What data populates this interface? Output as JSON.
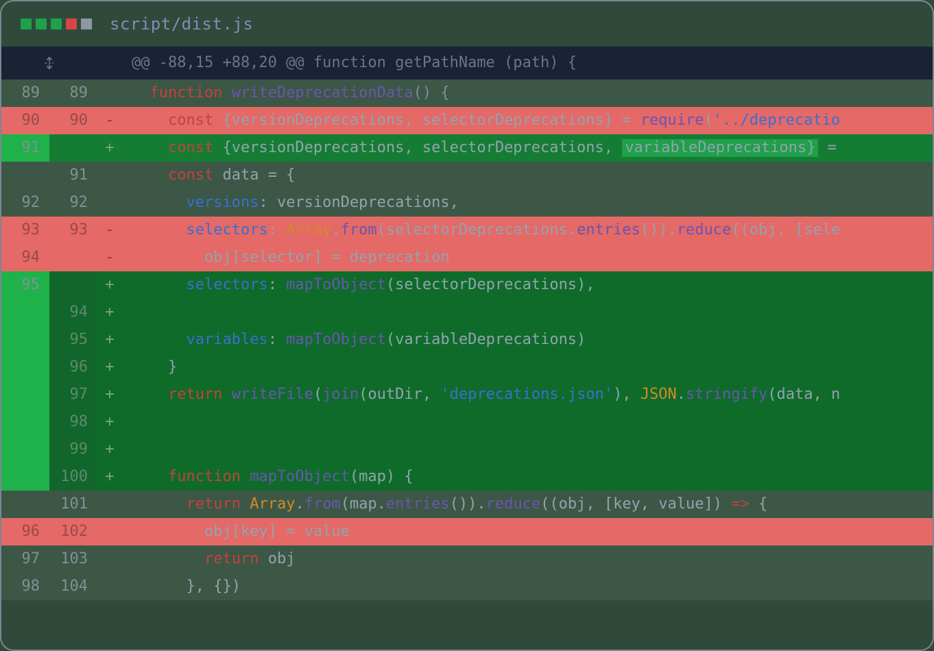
{
  "header": {
    "file_path": "script/dist.js",
    "dots": [
      "#1fa04a",
      "#1fa04a",
      "#1fa04a",
      "#d64543",
      "#8d98a3"
    ]
  },
  "hunk": {
    "text": "@@ -88,15 +88,20 @@ function getPathName (path) {"
  },
  "rows": [
    {
      "type": "ctx",
      "old": "89",
      "new": "89",
      "tokens": [
        {
          "t": "  ",
          "c": ""
        },
        {
          "t": "function",
          "c": "k-red"
        },
        {
          "t": " ",
          "c": ""
        },
        {
          "t": "writeDeprecationData",
          "c": "k-purple"
        },
        {
          "t": "() {",
          "c": "txt-dim"
        }
      ]
    },
    {
      "type": "del",
      "old": "90",
      "new": "90",
      "sign": "-",
      "tokens": [
        {
          "t": "    ",
          "c": ""
        },
        {
          "t": "const",
          "c": "k-red"
        },
        {
          "t": " {versionDeprecations, selectorDeprecations} = ",
          "c": "txt-d2"
        },
        {
          "t": "require",
          "c": "k-purple"
        },
        {
          "t": "(",
          "c": "txt-d2"
        },
        {
          "t": "'../deprecatio",
          "c": "k-blue"
        }
      ]
    },
    {
      "type": "add",
      "bright": true,
      "old": "91",
      "new": "",
      "sign": "+",
      "tokens": [
        {
          "t": "    ",
          "c": ""
        },
        {
          "t": "const",
          "c": "k-red"
        },
        {
          "t": " {versionDeprecations, selectorDeprecations, ",
          "c": "txt-d2"
        },
        {
          "t": "variableDeprecations}",
          "c": "txt-d2",
          "hl": true
        },
        {
          "t": " =",
          "c": "txt-d2"
        }
      ]
    },
    {
      "type": "ctx",
      "old": "",
      "new": "91",
      "tokens": [
        {
          "t": "    ",
          "c": ""
        },
        {
          "t": "const",
          "c": "k-red"
        },
        {
          "t": " data = {",
          "c": "txt-d2"
        }
      ]
    },
    {
      "type": "ctx",
      "old": "92",
      "new": "92",
      "tokens": [
        {
          "t": "      ",
          "c": ""
        },
        {
          "t": "versions",
          "c": "k-blue"
        },
        {
          "t": ": versionDeprecations,",
          "c": "txt-d2"
        }
      ]
    },
    {
      "type": "del",
      "old": "93",
      "new": "93",
      "sign": "-",
      "tokens": [
        {
          "t": "      ",
          "c": ""
        },
        {
          "t": "selectors",
          "c": "k-blue"
        },
        {
          "t": ": ",
          "c": "txt-d2"
        },
        {
          "t": "Array",
          "c": "k-orange"
        },
        {
          "t": ".",
          "c": "txt-d2"
        },
        {
          "t": "from",
          "c": "k-purple"
        },
        {
          "t": "(selectorDeprecations.",
          "c": "txt-d2"
        },
        {
          "t": "entries",
          "c": "k-purple"
        },
        {
          "t": "()).",
          "c": "txt-d2"
        },
        {
          "t": "reduce",
          "c": "k-purple"
        },
        {
          "t": "((obj, [sele",
          "c": "txt-d2"
        }
      ]
    },
    {
      "type": "del",
      "old": "94",
      "new": "",
      "sign": "-",
      "tokens": [
        {
          "t": "        obj[selector] = deprecation",
          "c": "txt-d2"
        }
      ]
    },
    {
      "type": "add",
      "old": "95",
      "new": "",
      "sign": "+",
      "tokens": [
        {
          "t": "      ",
          "c": ""
        },
        {
          "t": "selectors",
          "c": "k-blue"
        },
        {
          "t": ": ",
          "c": "txt-d2"
        },
        {
          "t": "mapToObject",
          "c": "k-purple"
        },
        {
          "t": "(selectorDeprecations),",
          "c": "txt-d2"
        }
      ]
    },
    {
      "type": "add",
      "old": "",
      "new": "94",
      "sign": "+",
      "tokens": [
        {
          "t": "",
          "c": ""
        }
      ]
    },
    {
      "type": "add",
      "old": "",
      "new": "95",
      "sign": "+",
      "tokens": [
        {
          "t": "      ",
          "c": ""
        },
        {
          "t": "variables",
          "c": "k-blue"
        },
        {
          "t": ": ",
          "c": "txt-d2"
        },
        {
          "t": "mapToObject",
          "c": "k-purple"
        },
        {
          "t": "(variableDeprecations)",
          "c": "txt-d2"
        }
      ]
    },
    {
      "type": "add",
      "old": "",
      "new": "96",
      "sign": "+",
      "tokens": [
        {
          "t": "    }",
          "c": "txt-d2"
        }
      ]
    },
    {
      "type": "add",
      "old": "",
      "new": "97",
      "sign": "+",
      "tokens": [
        {
          "t": "    ",
          "c": ""
        },
        {
          "t": "return",
          "c": "k-red"
        },
        {
          "t": " ",
          "c": ""
        },
        {
          "t": "writeFile",
          "c": "k-purple"
        },
        {
          "t": "(",
          "c": "txt-d2"
        },
        {
          "t": "join",
          "c": "k-purple"
        },
        {
          "t": "(outDir, ",
          "c": "txt-d2"
        },
        {
          "t": "'deprecations.json'",
          "c": "k-blue"
        },
        {
          "t": "), ",
          "c": "txt-d2"
        },
        {
          "t": "JSON",
          "c": "k-orange"
        },
        {
          "t": ".",
          "c": "txt-d2"
        },
        {
          "t": "stringify",
          "c": "k-purple"
        },
        {
          "t": "(data, n",
          "c": "txt-d2"
        }
      ]
    },
    {
      "type": "add",
      "old": "",
      "new": "98",
      "sign": "+",
      "tokens": [
        {
          "t": "",
          "c": ""
        }
      ]
    },
    {
      "type": "add",
      "old": "",
      "new": "99",
      "sign": "+",
      "tokens": [
        {
          "t": "",
          "c": ""
        }
      ]
    },
    {
      "type": "add",
      "old": "",
      "new": "100",
      "sign": "+",
      "tokens": [
        {
          "t": "    ",
          "c": ""
        },
        {
          "t": "function",
          "c": "k-red"
        },
        {
          "t": " ",
          "c": ""
        },
        {
          "t": "mapToObject",
          "c": "k-purple"
        },
        {
          "t": "(map) {",
          "c": "txt-d2"
        }
      ]
    },
    {
      "type": "ctx",
      "old": "",
      "new": "101",
      "tokens": [
        {
          "t": "      ",
          "c": ""
        },
        {
          "t": "return",
          "c": "k-red"
        },
        {
          "t": " ",
          "c": ""
        },
        {
          "t": "Array",
          "c": "k-orange"
        },
        {
          "t": ".",
          "c": "txt-d2"
        },
        {
          "t": "from",
          "c": "k-purple"
        },
        {
          "t": "(map.",
          "c": "txt-d2"
        },
        {
          "t": "entries",
          "c": "k-purple"
        },
        {
          "t": "()).",
          "c": "txt-d2"
        },
        {
          "t": "reduce",
          "c": "k-purple"
        },
        {
          "t": "((obj, [key, value]) ",
          "c": "txt-d2"
        },
        {
          "t": "=>",
          "c": "k-red"
        },
        {
          "t": " {",
          "c": "txt-d2"
        }
      ]
    },
    {
      "type": "del",
      "old": "96",
      "new": "102",
      "sign": "",
      "tokens": [
        {
          "t": "        obj[key] = value",
          "c": "txt-d2"
        }
      ]
    },
    {
      "type": "ctx",
      "old": "97",
      "new": "103",
      "tokens": [
        {
          "t": "        ",
          "c": ""
        },
        {
          "t": "return",
          "c": "k-red"
        },
        {
          "t": " obj",
          "c": "txt-d2"
        }
      ]
    },
    {
      "type": "ctx",
      "old": "98",
      "new": "104",
      "tokens": [
        {
          "t": "      }, {})",
          "c": "txt-d2"
        }
      ]
    }
  ]
}
